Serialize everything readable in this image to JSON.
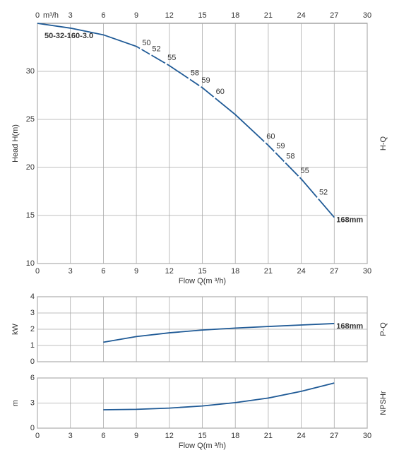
{
  "chart_data": [
    {
      "type": "line",
      "model": "50-32-160-3.0",
      "top_axis_unit": "m³/h",
      "y_label": "Head H(m)",
      "x_label": "Flow Q(m ³/h)",
      "side_label": "H-Q",
      "xlim": [
        0,
        30
      ],
      "xticks": [
        0,
        3,
        6,
        9,
        12,
        15,
        18,
        21,
        24,
        27,
        30
      ],
      "ylim": [
        10,
        35
      ],
      "yticks": [
        10,
        15,
        20,
        25,
        30
      ],
      "grid": true,
      "x": [
        0,
        3,
        6,
        9,
        12,
        15,
        18,
        21,
        24,
        27
      ],
      "series": [
        {
          "name": "168mm",
          "color": "#1f5a96",
          "values": [
            35,
            34.5,
            33.8,
            32.6,
            30.6,
            28.3,
            25.5,
            22.3,
            18.8,
            14.8
          ]
        }
      ],
      "efficiency": {
        "x": [
          9.4,
          10.3,
          11.7,
          13.8,
          14.8,
          16.1,
          20.7,
          21.6,
          22.5,
          23.8,
          25.5
        ],
        "values": [
          50,
          52,
          55,
          58,
          59,
          60,
          60,
          59,
          58,
          55,
          52
        ]
      }
    },
    {
      "type": "line",
      "y_label": "kW",
      "side_label": "P-Q",
      "xlim": [
        0,
        30
      ],
      "xticks": [
        0,
        3,
        6,
        9,
        12,
        15,
        18,
        21,
        24,
        27,
        30
      ],
      "ylim": [
        0,
        4
      ],
      "yticks": [
        0,
        1,
        2,
        3,
        4
      ],
      "grid": true,
      "x": [
        6,
        9,
        12,
        15,
        18,
        21,
        24,
        27
      ],
      "series": [
        {
          "name": "168mm",
          "color": "#1f5a96",
          "values": [
            1.2,
            1.55,
            1.78,
            1.95,
            2.07,
            2.17,
            2.26,
            2.35
          ]
        }
      ]
    },
    {
      "type": "line",
      "y_label": "m",
      "x_label": "Flow Q(m ³/h)",
      "side_label": "NPSHr",
      "xlim": [
        0,
        30
      ],
      "xticks": [
        0,
        3,
        6,
        9,
        12,
        15,
        18,
        21,
        24,
        27,
        30
      ],
      "ylim": [
        0,
        6
      ],
      "yticks": [
        0,
        3,
        6
      ],
      "grid": true,
      "x": [
        6,
        9,
        12,
        15,
        18,
        21,
        24,
        27
      ],
      "series": [
        {
          "color": "#1f5a96",
          "values": [
            2.2,
            2.25,
            2.4,
            2.65,
            3.05,
            3.6,
            4.4,
            5.4
          ]
        }
      ]
    }
  ]
}
